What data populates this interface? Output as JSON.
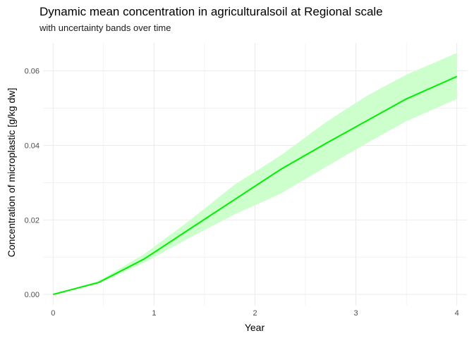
{
  "chart_data": {
    "type": "line",
    "title": "Dynamic mean concentration in agriculturalsoil at Regional scale",
    "subtitle": "with uncertainty bands over time",
    "xlabel": "Year",
    "ylabel": "Concentration of microplastic [g/kg dw]",
    "xlim": [
      -0.1,
      4.1
    ],
    "ylim": [
      -0.003,
      0.0675
    ],
    "x_ticks": [
      0,
      1,
      2,
      3,
      4
    ],
    "x_tick_labels": [
      "0",
      "1",
      "2",
      "3",
      "4"
    ],
    "y_ticks": [
      0,
      0.02,
      0.04,
      0.06
    ],
    "y_tick_labels": [
      "0.00",
      "0.02",
      "0.04",
      "0.06"
    ],
    "grid": true,
    "legend": "none",
    "colors": {
      "line": "#00ee00",
      "band": "#ccffcc",
      "grid": "#ebebeb"
    },
    "series": [
      {
        "x": [
          0,
          0.45,
          0.9,
          1.35,
          1.8,
          2.25,
          2.7,
          3.1,
          3.5,
          4.0
        ],
        "mean": [
          0,
          0.0032,
          0.0095,
          0.0175,
          0.0255,
          0.0335,
          0.0405,
          0.0465,
          0.0525,
          0.0585
        ],
        "lower": [
          0,
          0.0029,
          0.0085,
          0.0152,
          0.0215,
          0.027,
          0.0342,
          0.0405,
          0.0465,
          0.0525
        ],
        "upper": [
          0,
          0.0036,
          0.0108,
          0.0198,
          0.0295,
          0.0372,
          0.0462,
          0.0532,
          0.059,
          0.0648
        ]
      }
    ]
  }
}
